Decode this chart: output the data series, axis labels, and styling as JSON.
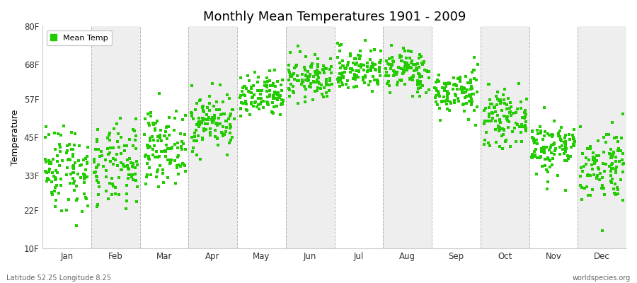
{
  "title": "Monthly Mean Temperatures 1901 - 2009",
  "ylabel": "Temperature",
  "xlabel": "",
  "y_ticks": [
    10,
    22,
    33,
    45,
    57,
    68,
    80
  ],
  "y_tick_labels": [
    "10F",
    "22F",
    "33F",
    "45F",
    "57F",
    "68F",
    "80F"
  ],
  "ylim": [
    10,
    80
  ],
  "x_month_labels": [
    "Jan",
    "Feb",
    "Mar",
    "Apr",
    "May",
    "Jun",
    "Jul",
    "Aug",
    "Sep",
    "Oct",
    "Nov",
    "Dec"
  ],
  "marker_color": "#22cc00",
  "background_color": "#ffffff",
  "band_colors": [
    "#ffffff",
    "#eeeeee"
  ],
  "grid_color": "#999999",
  "legend_label": "Mean Temp",
  "bottom_left_text": "Latitude 52.25 Longitude 8.25",
  "bottom_right_text": "worldspecies.org",
  "n_years": 109,
  "monthly_means_f": [
    35.5,
    35.5,
    42.0,
    50.0,
    57.5,
    63.5,
    66.5,
    66.0,
    59.0,
    51.0,
    42.0,
    36.5
  ],
  "monthly_stds_f": [
    7.0,
    6.5,
    5.5,
    4.5,
    3.5,
    3.5,
    3.5,
    3.5,
    3.5,
    4.0,
    4.5,
    6.0
  ],
  "seed": 42
}
